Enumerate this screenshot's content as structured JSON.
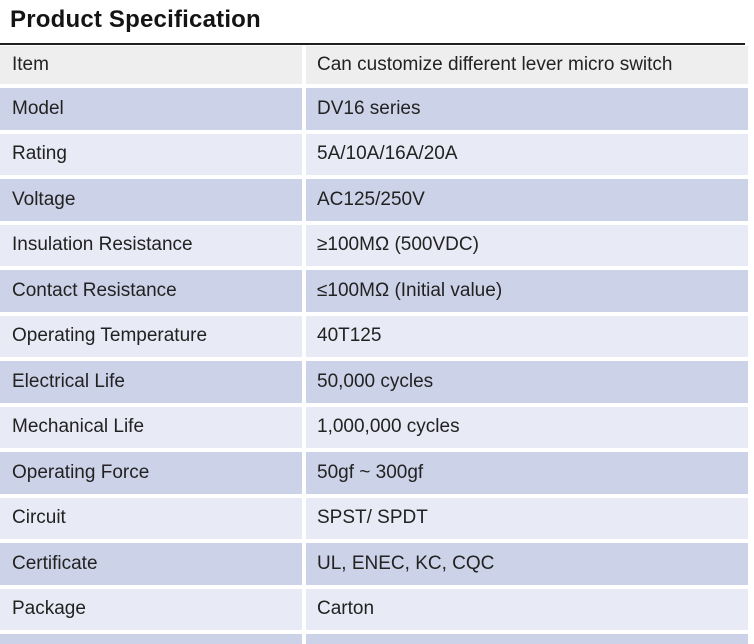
{
  "title": "Product Specification",
  "colors": {
    "header_row_bg": "#eeeeee",
    "dark_row_bg": "#ccd2e8",
    "light_row_bg": "#e8eaf5",
    "rule": "#1f1f1f",
    "text": "#222222"
  },
  "table": {
    "rows": [
      {
        "label": "Item",
        "value": "Can customize different lever micro switch"
      },
      {
        "label": "Model",
        "value": "DV16 series"
      },
      {
        "label": "Rating",
        "value": "5A/10A/16A/20A"
      },
      {
        "label": "Voltage",
        "value": "AC125/250V"
      },
      {
        "label": "Insulation Resistance",
        "value": "≥100MΩ (500VDC)"
      },
      {
        "label": "Contact Resistance",
        "value": "≤100MΩ (Initial value)"
      },
      {
        "label": "Operating Temperature",
        "value": "40T125"
      },
      {
        "label": "Electrical Life",
        "value": "50,000 cycles"
      },
      {
        "label": "Mechanical Life",
        "value": "1,000,000 cycles"
      },
      {
        "label": "Operating Force",
        "value": "50gf ~  300gf"
      },
      {
        "label": "Circuit",
        "value": "SPST/ SPDT"
      },
      {
        "label": "Certificate",
        "value": "UL, ENEC, KC, CQC"
      },
      {
        "label": "Package",
        "value": "Carton"
      }
    ]
  }
}
